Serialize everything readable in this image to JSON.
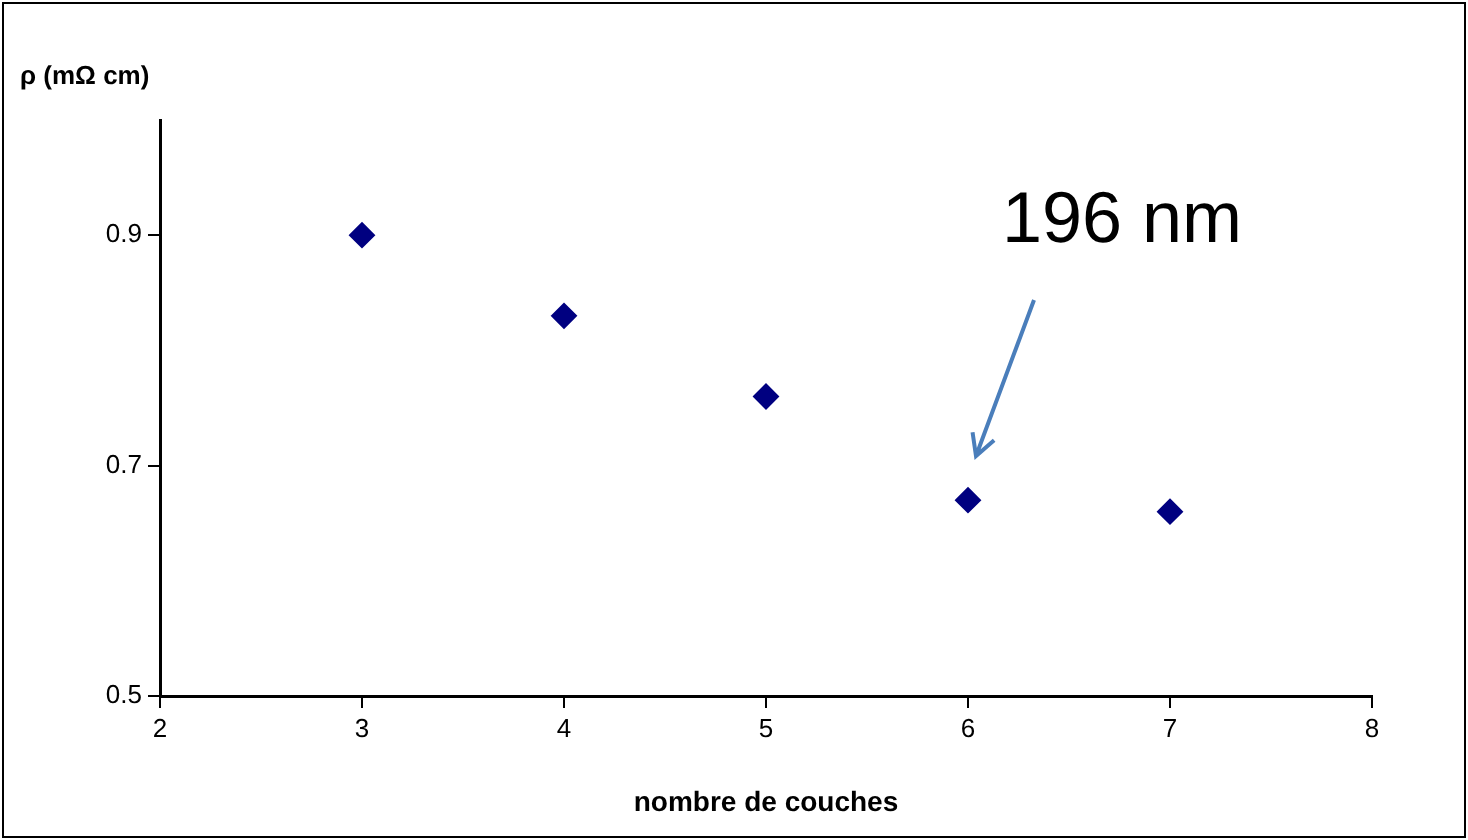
{
  "chart_data": {
    "type": "scatter",
    "ylabel": "ρ (mΩ cm)",
    "xlabel": "nombre de couches",
    "x": [
      3,
      4,
      5,
      6,
      7
    ],
    "series": [
      {
        "color": "#000080",
        "values": [
          0.9,
          0.83,
          0.76,
          0.67,
          0.66
        ]
      }
    ],
    "xlim": [
      2,
      8
    ],
    "xticks": [
      2,
      3,
      4,
      5,
      6,
      7,
      8
    ],
    "ylim": [
      0.5,
      1.0
    ],
    "yticks": [
      0.5,
      0.7,
      0.9
    ],
    "grid": false,
    "legend": false,
    "marker": "diamond",
    "annotations": [
      "196 nm"
    ]
  }
}
